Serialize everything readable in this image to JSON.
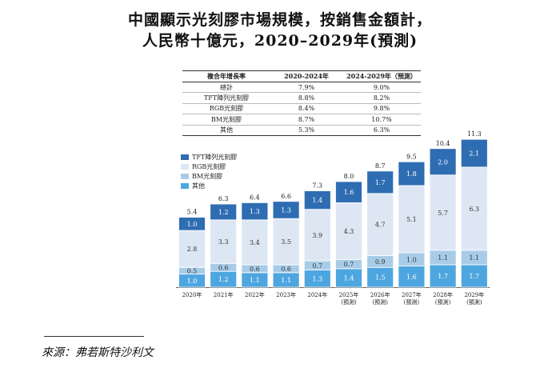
{
  "title_line1": "中國顯示光刻膠市場規模，按銷售金額計，",
  "title_line2": "人民幣十億元，2020–2029年(預測)",
  "cagr_table": {
    "header": [
      "複合年增長率",
      "2020-2024年",
      "2024-2029年（預測）"
    ],
    "rows": [
      {
        "label": "總計",
        "a": "7.9%",
        "b": "9.0%"
      },
      {
        "label": "TFT陣列光刻膠",
        "a": "8.8%",
        "b": "8.2%"
      },
      {
        "label": "RGB光刻膠",
        "a": "8.4%",
        "b": "9.8%"
      },
      {
        "label": "BM光刻膠",
        "a": "8.7%",
        "b": "10.7%"
      },
      {
        "label": "其他",
        "a": "5.3%",
        "b": "6.3%"
      }
    ]
  },
  "legend": [
    {
      "label": "TFT陣列光刻膠",
      "color": "#2f6db2"
    },
    {
      "label": "RGB光刻膠",
      "color": "#dde7f4"
    },
    {
      "label": "BM光刻膠",
      "color": "#a8cce8"
    },
    {
      "label": "其他",
      "color": "#4ea6e0"
    }
  ],
  "chart_data": {
    "type": "bar",
    "stacked": true,
    "categories": [
      "2020年",
      "2021年",
      "2022年",
      "2023年",
      "2024年",
      "2025年",
      "2026年",
      "2027年",
      "2028年",
      "2029年"
    ],
    "forecast_label": "(預測)",
    "forecast_from_index": 5,
    "series": [
      {
        "name": "其他",
        "color": "#4ea6e0",
        "values": [
          1.0,
          1.2,
          1.1,
          1.1,
          1.3,
          1.4,
          1.5,
          1.6,
          1.7,
          1.7
        ]
      },
      {
        "name": "BM光刻膠",
        "color": "#a8cce8",
        "values": [
          0.5,
          0.6,
          0.6,
          0.6,
          0.7,
          0.7,
          0.9,
          1.0,
          1.1,
          1.1
        ]
      },
      {
        "name": "RGB光刻膠",
        "color": "#dde7f4",
        "values": [
          2.8,
          3.3,
          3.4,
          3.5,
          3.9,
          4.3,
          4.7,
          5.1,
          5.7,
          6.3
        ]
      },
      {
        "name": "TFT陣列光刻膠",
        "color": "#2f6db2",
        "values": [
          1.0,
          1.2,
          1.3,
          1.3,
          1.4,
          1.6,
          1.7,
          1.8,
          2.0,
          2.1
        ]
      }
    ],
    "totals": [
      5.4,
      6.3,
      6.4,
      6.6,
      7.3,
      8.0,
      8.7,
      9.5,
      10.4,
      11.3
    ],
    "unit": "人民幣十億元"
  },
  "source": "來源：弗若斯特沙利文"
}
